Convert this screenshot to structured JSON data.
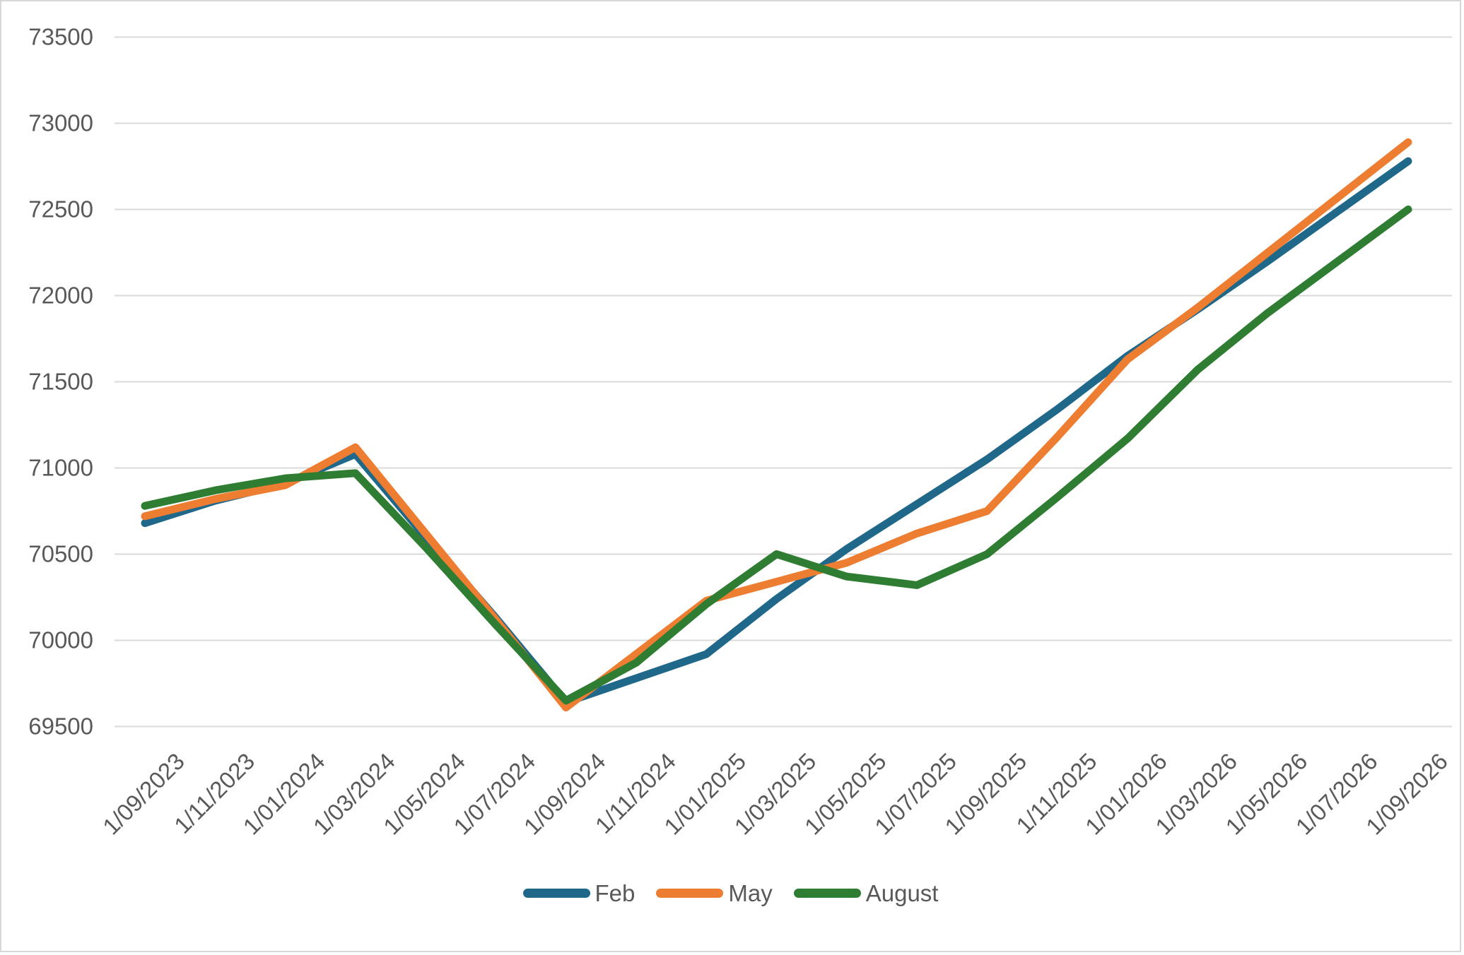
{
  "chart_data": {
    "type": "line",
    "title": "",
    "xlabel": "",
    "ylabel": "",
    "categories": [
      "1/09/2023",
      "1/11/2023",
      "1/01/2024",
      "1/03/2024",
      "1/05/2024",
      "1/07/2024",
      "1/09/2024",
      "1/11/2024",
      "1/01/2025",
      "1/03/2025",
      "1/05/2025",
      "1/07/2025",
      "1/09/2025",
      "1/11/2025",
      "1/01/2026",
      "1/03/2026",
      "1/05/2026",
      "1/07/2026",
      "1/09/2026"
    ],
    "series": [
      {
        "name": "Feb",
        "color": "#20688A",
        "values": [
          70680,
          70810,
          70910,
          71080,
          70600,
          70130,
          69640,
          69780,
          69920,
          70240,
          70530,
          70790,
          71050,
          71340,
          71650,
          71920,
          72200,
          72490,
          72780
        ]
      },
      {
        "name": "May",
        "color": "#ED7D31",
        "values": [
          70720,
          70820,
          70900,
          71120,
          70620,
          70120,
          69610,
          69920,
          70230,
          70340,
          70450,
          70620,
          70750,
          71180,
          71630,
          71930,
          72250,
          72570,
          72890
        ]
      },
      {
        "name": "August",
        "color": "#2E7D32",
        "values": [
          70780,
          70870,
          70940,
          70970,
          70540,
          70090,
          69650,
          69870,
          70210,
          70500,
          70370,
          70320,
          70500,
          70830,
          71170,
          71570,
          71900,
          72200,
          72500
        ]
      }
    ],
    "ylim": [
      69500,
      73500
    ],
    "ytick_step": 500,
    "grid": "horizontal",
    "gridline_color": "#d9d9d9",
    "axis_label_color": "#595959",
    "legend_position": "bottom",
    "background": "#ffffff"
  },
  "layout_text": {
    "note": ""
  }
}
